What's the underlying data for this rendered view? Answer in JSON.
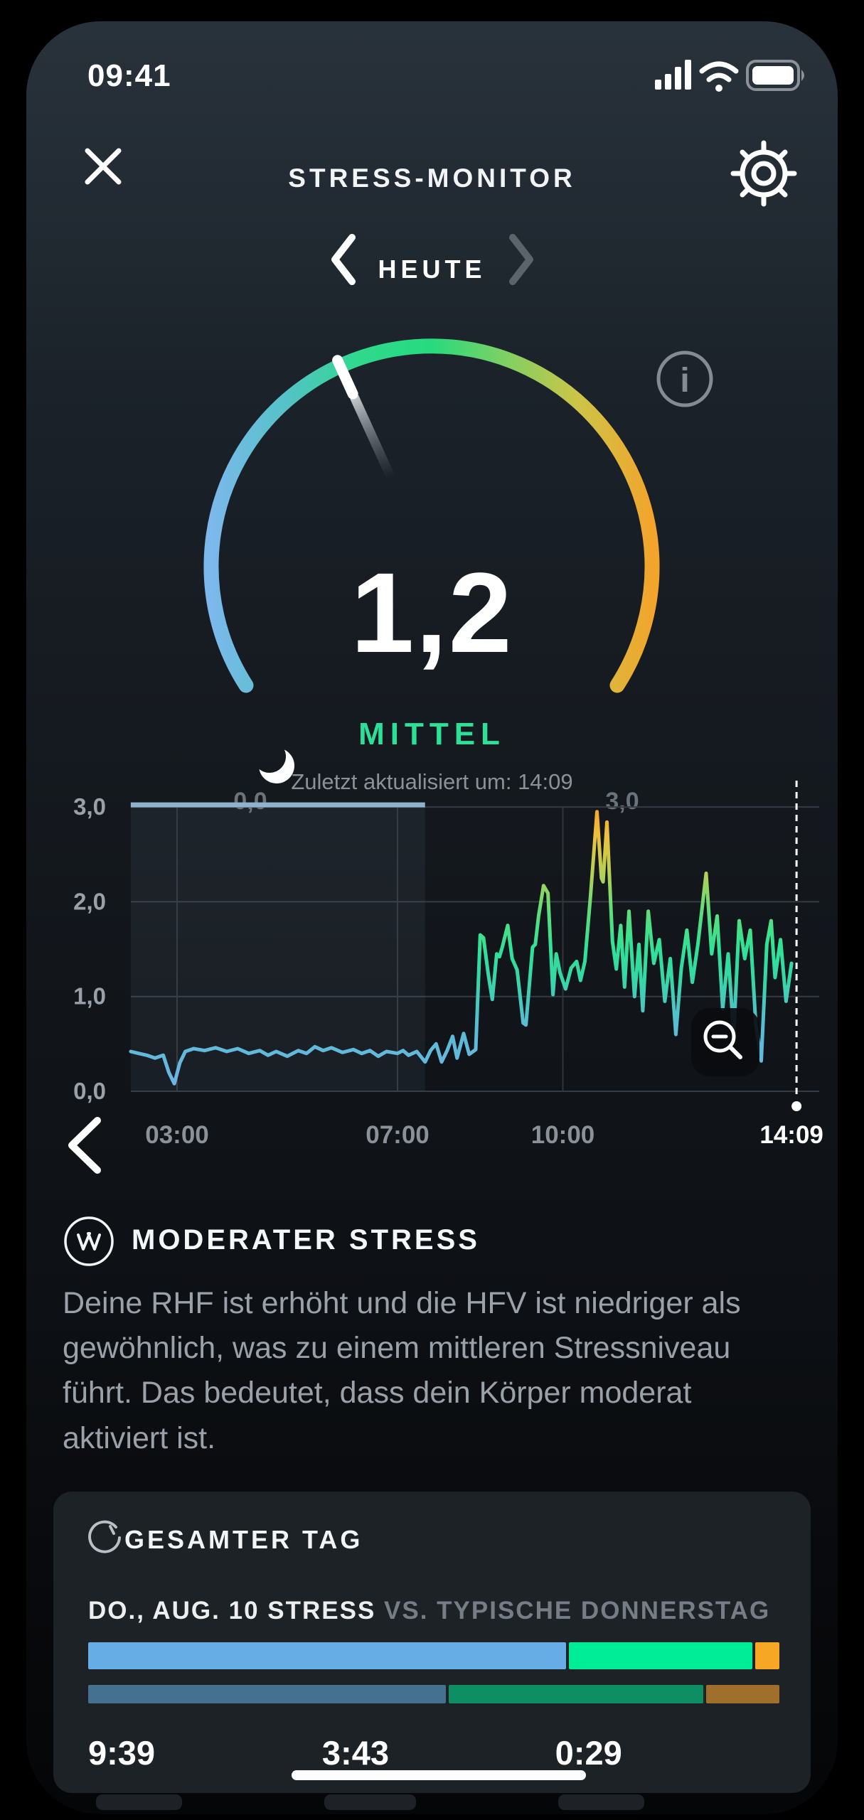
{
  "status_bar": {
    "time": "09:41",
    "icons": [
      "signal-icon",
      "wifi-icon",
      "battery-icon"
    ]
  },
  "header": {
    "title": "STRESS-MONITOR",
    "close_icon": "close-icon",
    "settings_icon": "gear-icon"
  },
  "date_nav": {
    "label": "HEUTE",
    "prev_icon": "chevron-left-icon",
    "next_icon": "chevron-right-icon"
  },
  "gauge": {
    "value": 1.2,
    "value_display": "1,2",
    "min": 0,
    "max": 3,
    "min_label": "0,0",
    "max_label": "3,0",
    "status_label": "MITTEL",
    "status_color": "#2be197",
    "updated_text": "Zuletzt aktualisiert um: 14:09",
    "arc_colors": [
      "#7cb8ec",
      "#55c2c8",
      "#2fd98d",
      "#27da7e",
      "#7ed163",
      "#cdc447",
      "#f2a42c"
    ],
    "info_icon": "info-icon"
  },
  "chart_data": {
    "type": "line",
    "ylabel": "",
    "xlabel": "",
    "ylim": [
      0,
      3
    ],
    "x_range_hours": [
      2.16,
      14.35
    ],
    "grid": true,
    "y_ticks": [
      {
        "v": 3,
        "label": "3,0"
      },
      {
        "v": 2,
        "label": "2,0"
      },
      {
        "v": 1,
        "label": "1,0"
      },
      {
        "v": 0,
        "label": "0,0"
      }
    ],
    "x_ticks": [
      {
        "t": 3,
        "label": "03:00",
        "current": false
      },
      {
        "t": 7,
        "label": "07:00",
        "current": false
      },
      {
        "t": 10,
        "label": "10:00",
        "current": false
      },
      {
        "t": 14.15,
        "label": "14:09",
        "current": true
      }
    ],
    "sleep_window": {
      "start": 2.16,
      "end": 7.5,
      "icon": "moon-icon",
      "line_color": "#8fb2cd"
    },
    "value_color_stops": [
      {
        "v": 0.0,
        "color": "#6fb5e3"
      },
      {
        "v": 0.7,
        "color": "#58bcd4"
      },
      {
        "v": 1.2,
        "color": "#35d8a5"
      },
      {
        "v": 1.5,
        "color": "#2ee298"
      },
      {
        "v": 1.9,
        "color": "#5fdd7a"
      },
      {
        "v": 2.3,
        "color": "#b5d055"
      },
      {
        "v": 2.7,
        "color": "#eec13c"
      },
      {
        "v": 3.0,
        "color": "#f5a62a"
      }
    ],
    "series": [
      {
        "name": "stress",
        "points": [
          [
            2.16,
            0.42
          ],
          [
            2.3,
            0.4
          ],
          [
            2.45,
            0.38
          ],
          [
            2.6,
            0.35
          ],
          [
            2.75,
            0.38
          ],
          [
            2.85,
            0.2
          ],
          [
            2.95,
            0.08
          ],
          [
            3.05,
            0.3
          ],
          [
            3.15,
            0.42
          ],
          [
            3.3,
            0.45
          ],
          [
            3.5,
            0.43
          ],
          [
            3.7,
            0.46
          ],
          [
            3.9,
            0.42
          ],
          [
            4.1,
            0.45
          ],
          [
            4.3,
            0.4
          ],
          [
            4.5,
            0.43
          ],
          [
            4.65,
            0.38
          ],
          [
            4.8,
            0.42
          ],
          [
            5.0,
            0.37
          ],
          [
            5.2,
            0.43
          ],
          [
            5.35,
            0.4
          ],
          [
            5.5,
            0.47
          ],
          [
            5.65,
            0.43
          ],
          [
            5.8,
            0.46
          ],
          [
            6.0,
            0.41
          ],
          [
            6.2,
            0.44
          ],
          [
            6.35,
            0.4
          ],
          [
            6.5,
            0.43
          ],
          [
            6.65,
            0.37
          ],
          [
            6.8,
            0.42
          ],
          [
            7.0,
            0.4
          ],
          [
            7.1,
            0.43
          ],
          [
            7.2,
            0.38
          ],
          [
            7.35,
            0.42
          ],
          [
            7.5,
            0.31
          ],
          [
            7.6,
            0.43
          ],
          [
            7.7,
            0.5
          ],
          [
            7.8,
            0.31
          ],
          [
            7.9,
            0.43
          ],
          [
            8.0,
            0.58
          ],
          [
            8.08,
            0.35
          ],
          [
            8.2,
            0.61
          ],
          [
            8.3,
            0.39
          ],
          [
            8.42,
            0.44
          ],
          [
            8.5,
            1.65
          ],
          [
            8.56,
            1.62
          ],
          [
            8.65,
            1.22
          ],
          [
            8.72,
            0.97
          ],
          [
            8.8,
            1.45
          ],
          [
            8.85,
            1.42
          ],
          [
            8.9,
            1.52
          ],
          [
            9.0,
            1.75
          ],
          [
            9.08,
            1.4
          ],
          [
            9.17,
            1.28
          ],
          [
            9.28,
            0.72
          ],
          [
            9.33,
            0.7
          ],
          [
            9.45,
            1.52
          ],
          [
            9.5,
            1.55
          ],
          [
            9.56,
            1.85
          ],
          [
            9.65,
            2.17
          ],
          [
            9.73,
            2.09
          ],
          [
            9.82,
            1.02
          ],
          [
            9.88,
            1.45
          ],
          [
            9.95,
            1.25
          ],
          [
            10.05,
            1.08
          ],
          [
            10.15,
            1.3
          ],
          [
            10.25,
            1.37
          ],
          [
            10.32,
            1.17
          ],
          [
            10.4,
            1.37
          ],
          [
            10.5,
            2.05
          ],
          [
            10.62,
            2.95
          ],
          [
            10.7,
            2.25
          ],
          [
            10.73,
            2.21
          ],
          [
            10.8,
            2.84
          ],
          [
            10.9,
            1.58
          ],
          [
            10.97,
            1.29
          ],
          [
            11.05,
            1.75
          ],
          [
            11.12,
            1.1
          ],
          [
            11.2,
            1.9
          ],
          [
            11.3,
            1.0
          ],
          [
            11.38,
            1.55
          ],
          [
            11.45,
            0.85
          ],
          [
            11.55,
            1.9
          ],
          [
            11.65,
            1.35
          ],
          [
            11.75,
            1.6
          ],
          [
            11.85,
            0.95
          ],
          [
            11.95,
            1.4
          ],
          [
            12.05,
            0.6
          ],
          [
            12.15,
            1.3
          ],
          [
            12.25,
            1.7
          ],
          [
            12.35,
            1.15
          ],
          [
            12.45,
            1.55
          ],
          [
            12.6,
            2.3
          ],
          [
            12.7,
            1.45
          ],
          [
            12.8,
            1.85
          ],
          [
            12.9,
            0.87
          ],
          [
            13.0,
            1.45
          ],
          [
            13.1,
            0.6
          ],
          [
            13.2,
            1.8
          ],
          [
            13.3,
            1.4
          ],
          [
            13.4,
            1.7
          ],
          [
            13.5,
            0.71
          ],
          [
            13.6,
            0.32
          ],
          [
            13.7,
            1.55
          ],
          [
            13.78,
            1.8
          ],
          [
            13.85,
            1.2
          ],
          [
            13.95,
            1.6
          ],
          [
            14.05,
            0.95
          ],
          [
            14.15,
            1.35
          ]
        ]
      }
    ],
    "controls": {
      "zoom_out_icon": "magnifier-minus-icon",
      "back_icon": "chevron-left-icon"
    }
  },
  "insight": {
    "icon": "whoop-logo-icon",
    "title": "MODERATER STRESS",
    "body": "Deine RHF ist erhöht und die HFV ist niedriger als gewöhnlich, was zu einem mittleren Stressniveau führt. Das bedeutet, dass dein Körper moderat aktiviert ist."
  },
  "summary_card": {
    "icon": "gauge-glyph-icon",
    "title": "GESAMTER TAG",
    "subtitle_primary": "DO., AUG. 10 STRESS ",
    "subtitle_secondary": "VS. TYPISCHE DONNERSTAG",
    "bars": [
      {
        "name": "today",
        "segments": [
          {
            "level": "low",
            "fraction": 0.697,
            "color": "#66ade5"
          },
          {
            "level": "medium",
            "fraction": 0.268,
            "color": "#00ed97"
          },
          {
            "level": "high",
            "fraction": 0.035,
            "color": "#f6a825"
          }
        ]
      },
      {
        "name": "typical",
        "segments": [
          {
            "level": "low",
            "fraction": 0.522,
            "color": "#46708f"
          },
          {
            "level": "medium",
            "fraction": 0.371,
            "color": "#0e8f63"
          },
          {
            "level": "high",
            "fraction": 0.107,
            "color": "#9f6f2b"
          }
        ]
      }
    ],
    "durations": [
      "9:39",
      "3:43",
      "0:29"
    ]
  }
}
